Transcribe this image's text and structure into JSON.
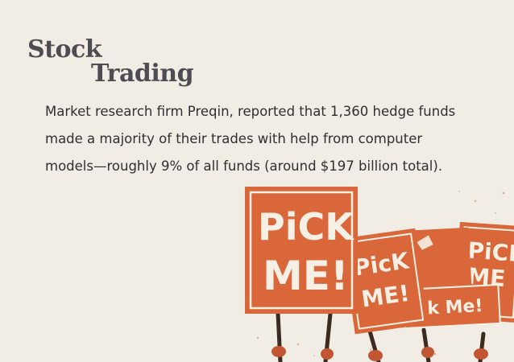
{
  "title": {
    "line1": "Stock",
    "line2": "Trading"
  },
  "body": {
    "line1": "Market research firm Preqin, reported that 1,360 hedge funds",
    "line2": "made a majority of their trades with help from computer",
    "line3": "models—roughly 9% of all funds (around $197 billion total)."
  },
  "illustration": {
    "sign1": {
      "line1": "PiCK",
      "line2": "ME!"
    },
    "sign2": {
      "line1": "PicK",
      "line2": "ME!"
    },
    "sign3": "ick Me!",
    "sign4": {
      "line1": "PiCK",
      "line2": "ME"
    },
    "colors": {
      "sign": "#d9673a",
      "sign_dark": "#b9542e",
      "text": "#f6efe4",
      "stick": "#3a2a22",
      "background": "#f1ede4"
    }
  }
}
